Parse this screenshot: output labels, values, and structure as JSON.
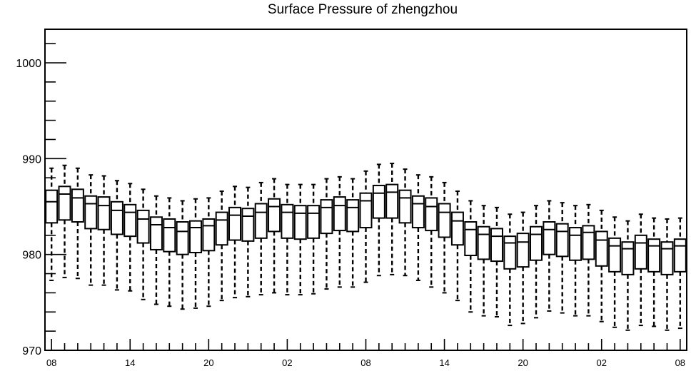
{
  "chart_data": {
    "type": "box",
    "title": "Surface Pressure of zhengzhou",
    "xlabel": "",
    "ylabel": "",
    "ylim": [
      970,
      1003.5
    ],
    "y_ticks": [
      970,
      980,
      990,
      1000
    ],
    "x_tick_labels": [
      "08",
      "14",
      "20",
      "02",
      "08",
      "14",
      "20",
      "02",
      "08"
    ],
    "x_tick_label_hours": [
      0,
      6,
      12,
      18,
      24,
      30,
      36,
      42,
      48
    ],
    "x_hours_range": [
      -0.5,
      48.5
    ],
    "grid": false,
    "series": [
      {
        "hours": [
          0,
          1,
          2,
          3,
          4,
          5,
          6,
          7,
          8,
          9,
          10,
          11,
          12,
          13,
          14,
          15,
          16,
          17,
          18,
          19,
          20,
          21,
          22,
          23,
          24,
          25,
          26,
          27,
          28,
          29,
          30,
          31,
          32,
          33,
          34,
          35,
          36,
          37,
          38,
          39,
          40,
          41,
          42,
          43,
          44,
          45,
          46,
          47,
          48
        ],
        "whisker_low": [
          977.3,
          977.6,
          977.5,
          976.8,
          976.8,
          976.3,
          976.2,
          975.3,
          974.8,
          974.6,
          974.3,
          974.4,
          974.6,
          975.2,
          975.5,
          975.6,
          975.8,
          976.0,
          975.8,
          975.8,
          975.9,
          976.4,
          976.6,
          976.6,
          977.1,
          977.8,
          977.9,
          977.8,
          977.3,
          976.6,
          976.0,
          975.2,
          974.0,
          973.6,
          973.5,
          972.6,
          972.8,
          973.4,
          974.1,
          973.9,
          973.6,
          973.6,
          973.0,
          972.4,
          972.1,
          972.6,
          972.5,
          972.1,
          972.3
        ],
        "q1": [
          983.3,
          983.6,
          983.4,
          982.7,
          982.6,
          982.1,
          981.9,
          981.2,
          980.5,
          980.3,
          980.0,
          980.2,
          980.4,
          981.0,
          981.5,
          981.4,
          981.7,
          982.4,
          981.7,
          981.6,
          981.7,
          982.2,
          982.5,
          982.4,
          982.8,
          983.8,
          983.8,
          983.3,
          982.8,
          982.5,
          981.8,
          981.0,
          979.9,
          979.5,
          979.3,
          978.5,
          978.7,
          979.4,
          980.0,
          979.8,
          979.4,
          979.5,
          978.8,
          978.2,
          977.9,
          978.5,
          978.2,
          977.9,
          978.2
        ],
        "median": [
          985.5,
          986.3,
          985.9,
          985.3,
          985.1,
          984.6,
          984.4,
          983.7,
          983.1,
          982.8,
          982.4,
          982.8,
          983.0,
          983.6,
          984.1,
          984.0,
          984.4,
          985.0,
          984.4,
          984.3,
          984.3,
          984.9,
          985.1,
          984.9,
          985.6,
          986.4,
          986.5,
          985.9,
          985.3,
          985.0,
          984.4,
          983.5,
          982.6,
          982.1,
          981.9,
          981.2,
          981.3,
          982.1,
          982.6,
          982.4,
          982.0,
          982.3,
          981.5,
          980.9,
          980.6,
          981.2,
          980.9,
          980.6,
          980.9
        ],
        "q3": [
          986.7,
          987.1,
          986.8,
          986.1,
          986.0,
          985.5,
          985.2,
          984.6,
          983.9,
          983.7,
          983.4,
          983.5,
          983.7,
          984.4,
          984.9,
          984.8,
          985.3,
          985.8,
          985.2,
          985.1,
          985.1,
          985.7,
          986.0,
          985.7,
          986.4,
          987.2,
          987.3,
          986.7,
          986.1,
          985.9,
          985.3,
          984.4,
          983.4,
          982.9,
          982.7,
          981.9,
          982.2,
          982.9,
          983.4,
          983.2,
          982.8,
          983.0,
          982.4,
          981.7,
          981.3,
          982.0,
          981.6,
          981.3,
          981.6
        ],
        "whisker_high": [
          989.0,
          989.3,
          989.0,
          988.3,
          988.2,
          987.7,
          987.4,
          986.8,
          986.1,
          985.9,
          985.6,
          985.8,
          985.9,
          986.6,
          987.1,
          987.0,
          987.5,
          987.9,
          987.3,
          987.3,
          987.3,
          987.9,
          988.1,
          987.9,
          988.7,
          989.4,
          989.5,
          988.9,
          988.3,
          988.1,
          987.5,
          986.6,
          985.6,
          985.1,
          984.9,
          984.2,
          984.4,
          985.1,
          985.6,
          985.4,
          985.1,
          985.2,
          984.6,
          983.9,
          983.5,
          984.2,
          983.8,
          983.7,
          983.8
        ]
      }
    ]
  }
}
